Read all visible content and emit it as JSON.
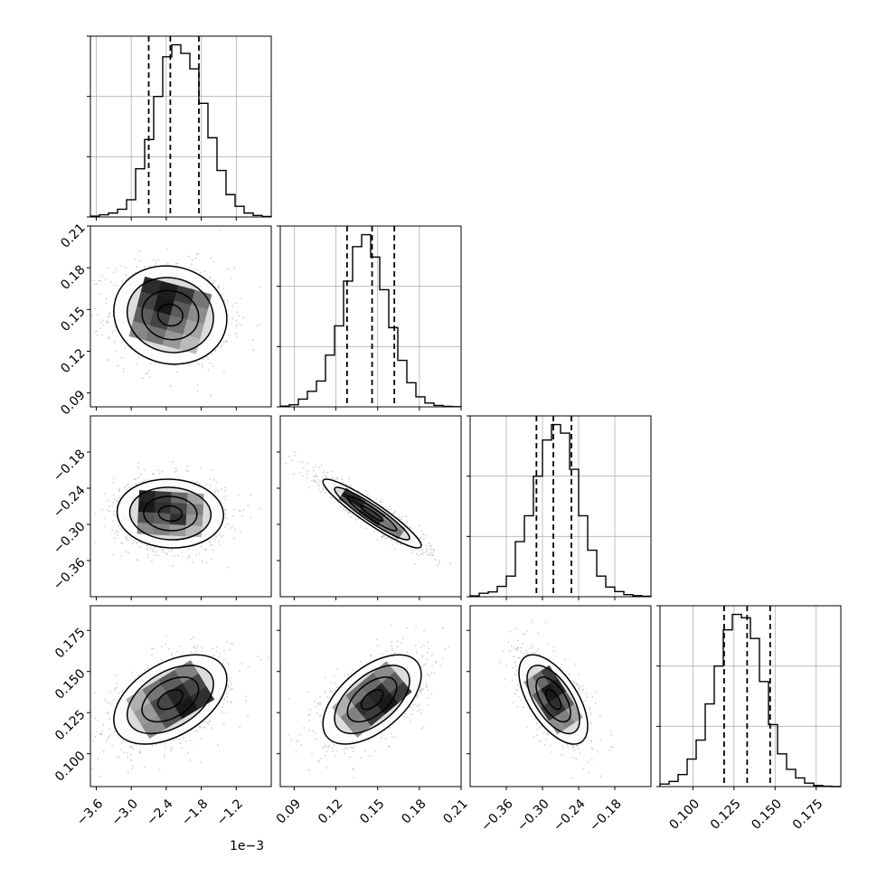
{
  "chart_data": {
    "type": "corner",
    "title": "",
    "offset_label": "1e−3",
    "quantiles": [
      0.16,
      0.5,
      0.84
    ],
    "colors": {
      "hist": "#000000",
      "grid": "#b0b0b0",
      "scatter": "#a8a8a8",
      "contour": "#000000"
    },
    "grid": true,
    "parameters": [
      {
        "range": [
          -3.7,
          -0.6
        ],
        "ticks": [
          -3.6,
          -3.0,
          -2.4,
          -1.8,
          -1.2
        ],
        "tick_labels": [
          "−3.6",
          "−3.0",
          "−2.4",
          "−1.8",
          "−1.2"
        ],
        "quantile_values": [
          -2.7,
          -2.33,
          -1.84
        ],
        "hist": [
          0.005,
          0.013,
          0.023,
          0.045,
          0.1,
          0.28,
          0.45,
          0.7,
          0.93,
          1.0,
          0.95,
          0.86,
          0.66,
          0.46,
          0.27,
          0.13,
          0.062,
          0.023,
          0.009,
          0.003
        ]
      },
      {
        "range": [
          0.08,
          0.21
        ],
        "ticks": [
          0.09,
          0.12,
          0.15,
          0.18,
          0.21
        ],
        "tick_labels": [
          "0.09",
          "0.12",
          "0.15",
          "0.18",
          "0.21"
        ],
        "quantile_values": [
          0.128,
          0.146,
          0.162
        ],
        "hist": [
          0.004,
          0.012,
          0.045,
          0.09,
          0.15,
          0.3,
          0.47,
          0.73,
          0.93,
          1.0,
          0.87,
          0.68,
          0.46,
          0.27,
          0.14,
          0.058,
          0.022,
          0.008,
          0.003,
          0.001
        ]
      },
      {
        "range": [
          -0.42,
          -0.12
        ],
        "ticks": [
          -0.36,
          -0.3,
          -0.24,
          -0.18
        ],
        "tick_labels": [
          "−0.36",
          "−0.30",
          "−0.24",
          "−0.18"
        ],
        "quantile_values": [
          -0.31,
          -0.282,
          -0.252
        ],
        "hist": [
          0.005,
          0.02,
          0.028,
          0.06,
          0.12,
          0.32,
          0.47,
          0.7,
          0.91,
          1.0,
          0.95,
          0.74,
          0.47,
          0.27,
          0.12,
          0.056,
          0.03,
          0.012,
          0.006,
          0.003
        ]
      },
      {
        "range": [
          0.08,
          0.19
        ],
        "ticks": [
          0.1,
          0.125,
          0.15,
          0.175
        ],
        "tick_labels": [
          "0.100",
          "0.125",
          "0.150",
          "0.175"
        ],
        "quantile_values": [
          0.119,
          0.133,
          0.147
        ],
        "hist": [
          0.015,
          0.03,
          0.07,
          0.16,
          0.27,
          0.48,
          0.7,
          0.91,
          1.0,
          0.98,
          0.86,
          0.61,
          0.36,
          0.19,
          0.1,
          0.05,
          0.02,
          0.006,
          0.002,
          0.0
        ]
      }
    ],
    "pairs": [
      {
        "x": 0,
        "y": 1,
        "mean": [
          -2.33,
          0.146
        ],
        "sd": [
          0.51,
          0.0186
        ],
        "rho": -0.08,
        "hist2d": [
          [
            0.92,
            0.98,
            0.86,
            0.6
          ],
          [
            0.82,
            1.0,
            0.72,
            0.5
          ],
          [
            0.7,
            0.82,
            0.62,
            0.4
          ],
          [
            0.52,
            0.6,
            0.45,
            0.3
          ]
        ]
      },
      {
        "x": 0,
        "y": 2,
        "mean": [
          -2.33,
          -0.282
        ],
        "sd": [
          0.48,
          0.03
        ],
        "rho": -0.05,
        "hist2d": [
          [
            0.95,
            0.85,
            0.65,
            0.4
          ],
          [
            1.0,
            0.9,
            0.8,
            0.55
          ],
          [
            0.75,
            0.7,
            0.9,
            0.45
          ],
          [
            0.5,
            0.55,
            0.45,
            0.3
          ]
        ]
      },
      {
        "x": 1,
        "y": 2,
        "mean": [
          0.146,
          -0.282
        ],
        "sd": [
          0.0186,
          0.03
        ],
        "rho": -0.93,
        "hist2d": [
          [
            0.9,
            0.7,
            0.45
          ],
          [
            1.0,
            0.85,
            0.6
          ],
          [
            0.7,
            0.9,
            0.55
          ]
        ]
      },
      {
        "x": 0,
        "y": 3,
        "mean": [
          -2.33,
          0.133
        ],
        "sd": [
          0.51,
          0.0143
        ],
        "rho": 0.45,
        "hist2d": [
          [
            0.9,
            1.0,
            0.75,
            0.5
          ],
          [
            0.8,
            0.95,
            0.8,
            0.45
          ],
          [
            0.55,
            0.7,
            0.6,
            0.35
          ]
        ]
      },
      {
        "x": 1,
        "y": 3,
        "mean": [
          0.146,
          0.133
        ],
        "sd": [
          0.0186,
          0.0143
        ],
        "rho": 0.55,
        "hist2d": [
          [
            0.85,
            1.0,
            0.85,
            0.5
          ],
          [
            0.7,
            0.95,
            0.9,
            0.55
          ],
          [
            0.5,
            0.65,
            0.6,
            0.35
          ]
        ]
      },
      {
        "x": 2,
        "y": 3,
        "mean": [
          -0.282,
          0.133
        ],
        "sd": [
          0.03,
          0.0143
        ],
        "rho": -0.6,
        "hist2d": [
          [
            0.85,
            0.95,
            0.7,
            0.4
          ],
          [
            0.65,
            1.0,
            0.9,
            0.55
          ],
          [
            0.45,
            0.7,
            0.85,
            0.5
          ]
        ]
      }
    ]
  }
}
